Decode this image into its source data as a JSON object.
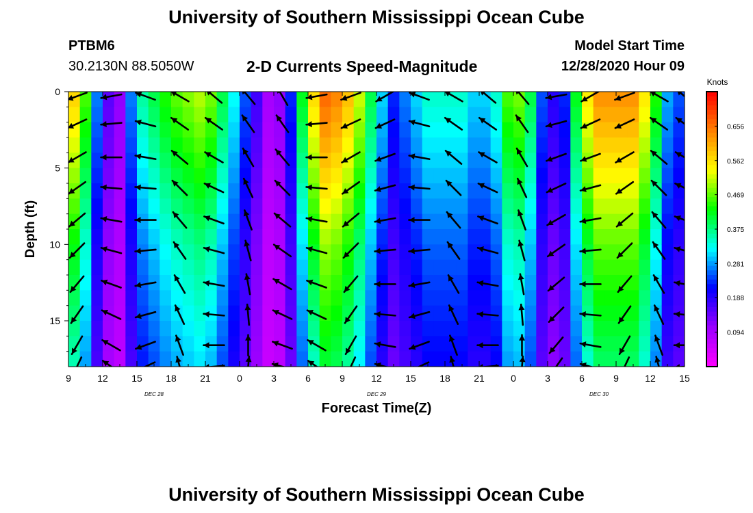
{
  "header": {
    "title": "University of Southern Mississippi Ocean Cube",
    "station_id": "PTBM6",
    "coordinates": "30.2130N 88.5050W",
    "subtitle": "2-D Currents Speed-Magnitude",
    "model_start_label": "Model Start Time",
    "model_start_time": "12/28/2020 Hour 09"
  },
  "footer": {
    "title": "University of Southern Mississippi Ocean Cube"
  },
  "chart_data": {
    "type": "heatmap",
    "xlabel": "Forecast Time(Z)",
    "ylabel": "Depth (ft)",
    "x_unit": "hours since 12/28/2020 09Z",
    "xlim": [
      0,
      54
    ],
    "ylim": [
      0,
      18
    ],
    "y_inverted": true,
    "x_ticks": [
      {
        "hour": 0,
        "label": "9"
      },
      {
        "hour": 3,
        "label": "12"
      },
      {
        "hour": 6,
        "label": "15"
      },
      {
        "hour": 9,
        "label": "18"
      },
      {
        "hour": 12,
        "label": "21"
      },
      {
        "hour": 15,
        "label": "0"
      },
      {
        "hour": 18,
        "label": "3"
      },
      {
        "hour": 21,
        "label": "6"
      },
      {
        "hour": 24,
        "label": "9"
      },
      {
        "hour": 27,
        "label": "12"
      },
      {
        "hour": 30,
        "label": "15"
      },
      {
        "hour": 33,
        "label": "18"
      },
      {
        "hour": 36,
        "label": "21"
      },
      {
        "hour": 39,
        "label": "0"
      },
      {
        "hour": 42,
        "label": "3"
      },
      {
        "hour": 45,
        "label": "6"
      },
      {
        "hour": 48,
        "label": "9"
      },
      {
        "hour": 51,
        "label": "12"
      },
      {
        "hour": 54,
        "label": "15"
      }
    ],
    "date_labels": [
      {
        "hour": 7.5,
        "label": "DEC 28"
      },
      {
        "hour": 27,
        "label": "DEC 29"
      },
      {
        "hour": 46.5,
        "label": "DEC 30"
      }
    ],
    "y_ticks": [
      0,
      5,
      10,
      15
    ],
    "colorbar": {
      "title": "Knots",
      "range": [
        0,
        0.75
      ],
      "ticks": [
        0.094,
        0.188,
        0.281,
        0.375,
        0.469,
        0.562,
        0.656
      ],
      "colormap": [
        "#ff00ff",
        "#9a00ff",
        "#0000ff",
        "#00ffff",
        "#00ff00",
        "#ffff00",
        "#ff8000",
        "#ff0000"
      ]
    },
    "speed_columns": [
      {
        "hour": 0,
        "speed_knots": 0.55
      },
      {
        "hour": 1.5,
        "speed_knots": 0.4
      },
      {
        "hour": 3,
        "speed_knots": 0.15
      },
      {
        "hour": 4.5,
        "speed_knots": 0.1
      },
      {
        "hour": 6,
        "speed_knots": 0.3
      },
      {
        "hour": 9,
        "speed_knots": 0.4
      },
      {
        "hour": 12,
        "speed_knots": 0.45
      },
      {
        "hour": 15,
        "speed_knots": 0.25
      },
      {
        "hour": 18,
        "speed_knots": 0.05
      },
      {
        "hour": 19.5,
        "speed_knots": 0.2
      },
      {
        "hour": 21,
        "speed_knots": 0.45
      },
      {
        "hour": 22.5,
        "speed_knots": 0.58
      },
      {
        "hour": 24,
        "speed_knots": 0.55
      },
      {
        "hour": 25.5,
        "speed_knots": 0.45
      },
      {
        "hour": 27,
        "speed_knots": 0.3
      },
      {
        "hour": 28.5,
        "speed_knots": 0.2
      },
      {
        "hour": 31.5,
        "speed_knots": 0.3
      },
      {
        "hour": 34.5,
        "speed_knots": 0.3
      },
      {
        "hour": 36,
        "speed_knots": 0.25
      },
      {
        "hour": 37.5,
        "speed_knots": 0.3
      },
      {
        "hour": 39,
        "speed_knots": 0.45
      },
      {
        "hour": 40.5,
        "speed_knots": 0.35
      },
      {
        "hour": 42,
        "speed_knots": 0.15
      },
      {
        "hour": 43.5,
        "speed_knots": 0.2
      },
      {
        "hour": 45,
        "speed_knots": 0.45
      },
      {
        "hour": 46.5,
        "speed_knots": 0.55
      },
      {
        "hour": 49.5,
        "speed_knots": 0.55
      },
      {
        "hour": 51,
        "speed_knots": 0.45
      },
      {
        "hour": 52.5,
        "speed_knots": 0.25
      },
      {
        "hour": 54,
        "speed_knots": 0.2
      }
    ],
    "speed_depth_factor": [
      {
        "depth_ft": 0,
        "factor": 1.15
      },
      {
        "depth_ft": 5,
        "factor": 1.0
      },
      {
        "depth_ft": 10,
        "factor": 0.85
      },
      {
        "depth_ft": 18,
        "factor": 0.7
      }
    ],
    "vector_hours": [
      0.75,
      3.75,
      6.75,
      9.75,
      12.75,
      15.75,
      18.75,
      21.75,
      24.75,
      27.75,
      30.75,
      33.75,
      36.75,
      39.75,
      42.75,
      45.75,
      48.75,
      51.75,
      54
    ],
    "vector_depths_ft": [
      0.3,
      2.1,
      4.3,
      6.3,
      8.4,
      10.4,
      12.6,
      14.6,
      16.6,
      18
    ],
    "vector_directions_deg": [
      250,
      260,
      290,
      300,
      310,
      320,
      330,
      260,
      250,
      240,
      290,
      300,
      310,
      320,
      260,
      240,
      250,
      300,
      310
    ],
    "vector_depth_turn_deg": 5,
    "vectors_meaning": "current direction (degrees clockwise from north) per forecast time; vectors turn slightly with depth"
  }
}
